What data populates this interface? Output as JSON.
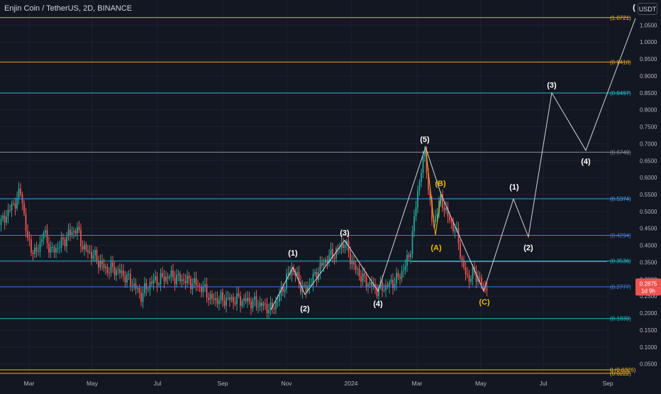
{
  "header": {
    "title": "Enjin Coin / TetherUS, 2D, BINANCE",
    "currency": "USDT"
  },
  "colors": {
    "background": "#131722",
    "up": "#26a69a",
    "down": "#ef5350",
    "wave": "#d1d4dc",
    "correction": "#f0b90b"
  },
  "chart_data": {
    "type": "candlestick",
    "x_ticks": [
      "Mar",
      "May",
      "Jul",
      "Sep",
      "Nov",
      "2024",
      "Mar",
      "May",
      "Jul",
      "Sep"
    ],
    "y_ticks": [
      "1.0500",
      "1.0000",
      "0.9500",
      "0.9000",
      "0.8500",
      "0.8000",
      "0.7500",
      "0.7000",
      "0.6500",
      "0.6000",
      "0.5500",
      "0.5000",
      "0.4500",
      "0.4000",
      "0.3500",
      "0.3000",
      "0.2500",
      "0.2000",
      "0.1500",
      "0.1000",
      "0.0500"
    ],
    "ylim": [
      0.0,
      1.08
    ],
    "price_label": {
      "value": "0.2875",
      "countdown": "1d 9h"
    },
    "fib_levels": [
      {
        "label": "(1.0721)",
        "value": 1.0721,
        "color": "#f0b90b",
        "label_color": "#f0b90b"
      },
      {
        "label": "(0.9410)",
        "value": 0.941,
        "color": "#f0a020",
        "label_color": "#f0a020"
      },
      {
        "label": "(0.8497)",
        "value": 0.8497,
        "color": "#22b8c8",
        "label_color": "#22b8c8"
      },
      {
        "label": "(0.6749)",
        "value": 0.6749,
        "color": "#8a8e99",
        "label_color": "#8a8e99"
      },
      {
        "label": "(0.5374)",
        "value": 0.5374,
        "color": "#3d9cf0",
        "label_color": "#3d9cf0"
      },
      {
        "label": "(0.4294)",
        "value": 0.4294,
        "color": "#3d7de0",
        "label_color": "#3d7de0"
      },
      {
        "label": "(0.3536)",
        "value": 0.3536,
        "color": "#22b8c8",
        "label_color": "#22b8c8"
      },
      {
        "label": "(0.2777)",
        "value": 0.2777,
        "color": "#3d7de0",
        "label_color": "#3d7de0"
      },
      {
        "label": "(0.1839)",
        "value": 0.1839,
        "color": "#22b8c8",
        "label_color": "#22b8c8"
      },
      {
        "label": "0 (0.0326)",
        "value": 0.0326,
        "color": "#f0b90b",
        "label_color": "#f0b90b"
      },
      {
        "label": "(0.0222)",
        "value": 0.0222,
        "color": "#f0b90b",
        "label_color": "#f0b90b"
      }
    ],
    "wave_labels": [
      {
        "text": "(1)",
        "color": "#ffffff",
        "x": 413,
        "y": 0.37
      },
      {
        "text": "(2)",
        "color": "#ffffff",
        "x": 430,
        "y": 0.205
      },
      {
        "text": "(3)",
        "color": "#ffffff",
        "x": 486,
        "y": 0.43
      },
      {
        "text": "(4)",
        "color": "#ffffff",
        "x": 533,
        "y": 0.22
      },
      {
        "text": "(5)",
        "color": "#ffffff",
        "x": 599,
        "y": 0.705
      },
      {
        "text": "(A)",
        "color": "#f0b90b",
        "x": 615,
        "y": 0.385
      },
      {
        "text": "(B)",
        "color": "#f0b90b",
        "x": 621,
        "y": 0.575
      },
      {
        "text": "(C)",
        "color": "#f0b90b",
        "x": 683,
        "y": 0.225
      },
      {
        "text": "(1)",
        "color": "#ffffff",
        "x": 725,
        "y": 0.565
      },
      {
        "text": "(2)",
        "color": "#ffffff",
        "x": 745,
        "y": 0.385
      },
      {
        "text": "(3)",
        "color": "#ffffff",
        "x": 778,
        "y": 0.865
      },
      {
        "text": "(4)",
        "color": "#ffffff",
        "x": 826,
        "y": 0.64
      },
      {
        "text": "(",
        "color": "#ffffff",
        "x": 894,
        "y": 1.095
      }
    ]
  }
}
